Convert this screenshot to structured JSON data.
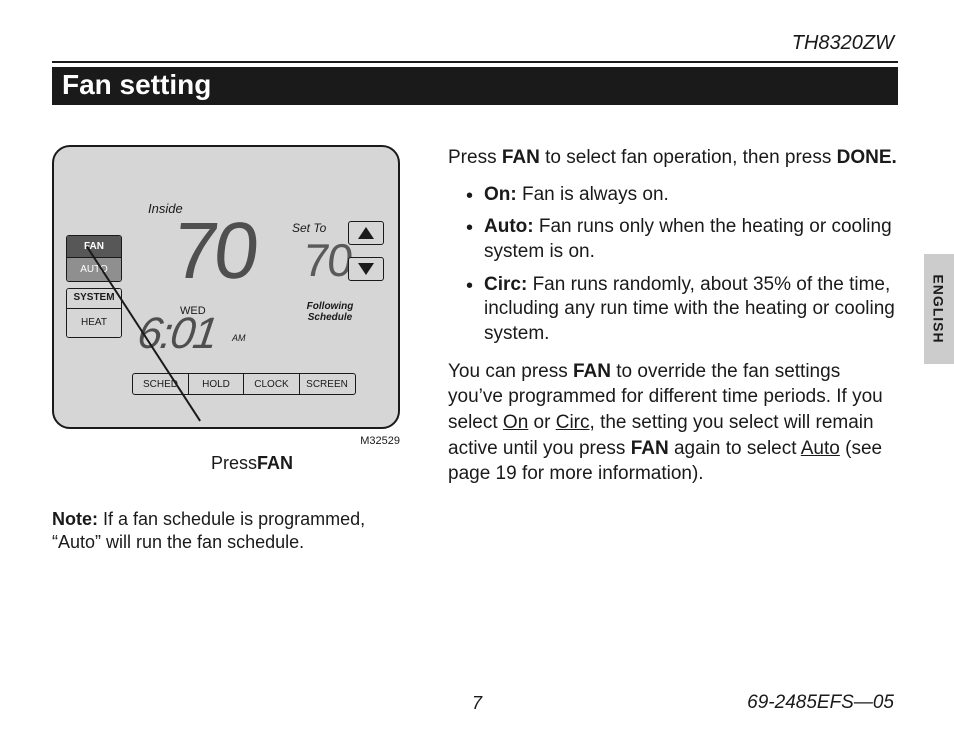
{
  "header": {
    "model": "TH8320ZW",
    "title": "Fan setting"
  },
  "thermostat": {
    "inside_label": "Inside",
    "inside_temp": "70",
    "set_to_label": "Set To",
    "set_temp": "70",
    "following_line1": "Following",
    "following_line2": "Schedule",
    "day": "WED",
    "time": "6:01",
    "ampm": "AM",
    "buttons": {
      "fan": "FAN",
      "auto": "AUTO",
      "system": "SYSTEM",
      "heat": "HEAT",
      "sched": "SCHED",
      "hold": "HOLD",
      "clock": "CLOCK",
      "screen": "SCREEN"
    },
    "fig_id": "M32529",
    "press_prefix": "Press",
    "press_bold": "FAN"
  },
  "note": {
    "label": "Note:",
    "text": " If a fan schedule is programmed, “Auto” will run the fan schedule."
  },
  "body": {
    "intro_1": "Press ",
    "intro_fan": "FAN",
    "intro_2": " to select fan operation, then press ",
    "intro_done": "DONE.",
    "bullets": [
      {
        "label": "On:",
        "text": " Fan is always on."
      },
      {
        "label": "Auto:",
        "text": " Fan runs only when the heating or cooling system is on."
      },
      {
        "label": "Circ:",
        "text": " Fan runs randomly, about 35% of the time, including any run time with the heating or cooling system."
      }
    ],
    "p2_a": "You can press ",
    "p2_fan": "FAN",
    "p2_b": " to override the fan settings you’ve programmed for different time periods. If you select ",
    "p2_on": "On",
    "p2_c": " or ",
    "p2_circ": "Circ",
    "p2_d": ", the setting you select will remain active until you press ",
    "p2_fan2": "FAN",
    "p2_e": " again to select ",
    "p2_auto": "Auto",
    "p2_f": " (see page 19 for more information)."
  },
  "side": {
    "language": "ENGLISH"
  },
  "footer": {
    "page": "7",
    "doc": "69-2485EFS—05"
  }
}
